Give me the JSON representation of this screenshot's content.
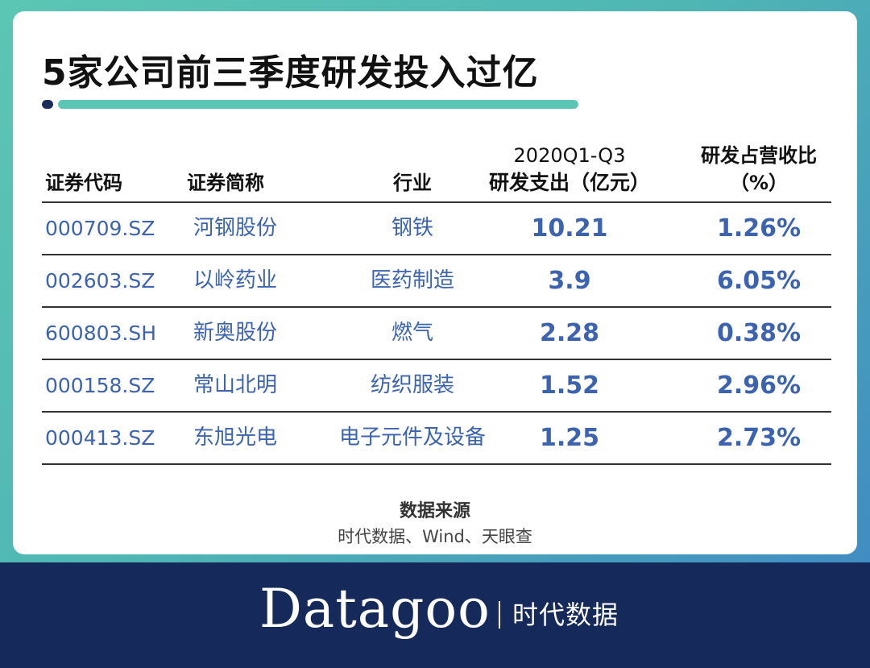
{
  "title": "5家公司前三季度研发投入过亿",
  "table": {
    "headers": {
      "code": "证券代码",
      "name": "证券简称",
      "industry": "行业",
      "rd_line1": "2020Q1-Q3",
      "rd_line2": "研发支出（亿元）",
      "pct_line1": "研发占营收比",
      "pct_line2": "（%）"
    },
    "rows": [
      {
        "code": "000709.SZ",
        "name": "河钢股份",
        "industry": "钢铁",
        "rd": "10.21",
        "pct": "1.26%"
      },
      {
        "code": "002603.SZ",
        "name": "以岭药业",
        "industry": "医药制造",
        "rd": "3.9",
        "pct": "6.05%"
      },
      {
        "code": "600803.SH",
        "name": "新奥股份",
        "industry": "燃气",
        "rd": "2.28",
        "pct": "0.38%"
      },
      {
        "code": "000158.SZ",
        "name": "常山北明",
        "industry": "纺织服装",
        "rd": "1.52",
        "pct": "2.96%"
      },
      {
        "code": "000413.SZ",
        "name": "东旭光电",
        "industry": "电子元件及设备",
        "rd": "1.25",
        "pct": "2.73%"
      }
    ]
  },
  "source": {
    "title": "数据来源",
    "text": "时代数据、Wind、天眼查"
  },
  "footer": {
    "brand": "Datagoo",
    "brand_cn": "时代数据"
  },
  "colors": {
    "accent_teal": "#5cc6b4",
    "navy": "#152a5b",
    "data_blue": "#3c63b0"
  }
}
